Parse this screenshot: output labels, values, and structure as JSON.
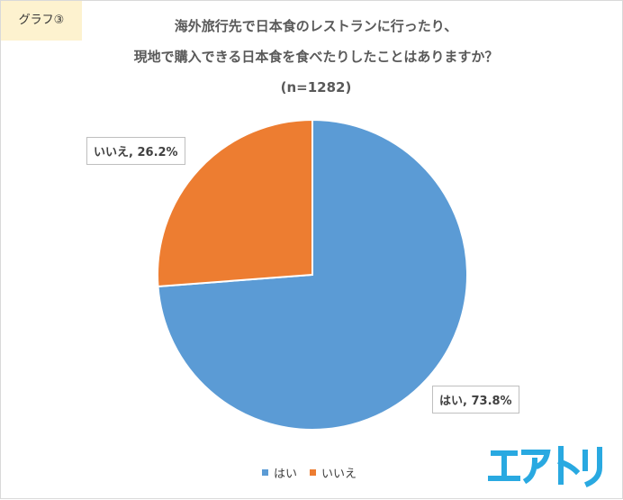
{
  "tag_label": "グラフ③",
  "chart_data": {
    "type": "pie",
    "title_lines": [
      "海外旅行先で日本食のレストランに行ったり、",
      "現地で購入できる日本食を食べたりしたことはありますか？",
      "(n=1282)"
    ],
    "slices": [
      {
        "label": "はい",
        "value": 73.8,
        "value_text": "73.8%",
        "color": "#5b9bd5"
      },
      {
        "label": "いいえ",
        "value": 26.2,
        "value_text": "26.2%",
        "color": "#ed7d31"
      }
    ],
    "start_angle": "12 o'clock",
    "direction": "clockwise",
    "legend": {
      "placement": "bottom-center"
    }
  },
  "brand": {
    "logo_text": "エアトリ",
    "color": "#29a9e1"
  }
}
